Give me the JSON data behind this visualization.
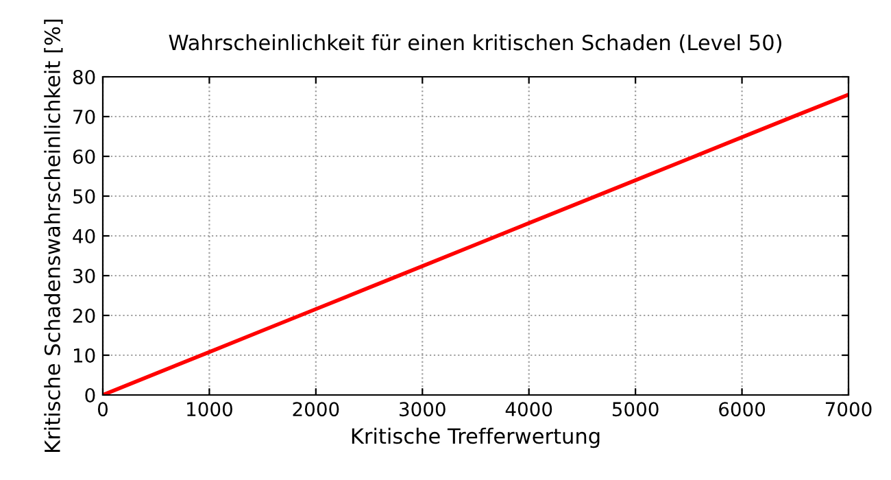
{
  "chart_data": {
    "type": "line",
    "title": "Wahrscheinlichkeit für einen kritischen Schaden (Level 50)",
    "xlabel": "Kritische Trefferwertung",
    "ylabel": "Kritische Schadenswahrscheinlichkeit [%]",
    "x": [
      0,
      500,
      1000,
      1500,
      2000,
      2500,
      3000,
      3500,
      4000,
      4500,
      5000,
      5500,
      6000,
      6500,
      7000
    ],
    "series": [
      {
        "color": "#ff0000",
        "values": [
          0,
          5.4,
          10.8,
          16.2,
          21.6,
          27,
          32.4,
          37.8,
          43.2,
          48.6,
          54,
          59.4,
          64.8,
          70.2,
          75.5
        ]
      }
    ],
    "xlim": [
      0,
      7000
    ],
    "xticks": [
      0,
      1000,
      2000,
      3000,
      4000,
      5000,
      6000,
      7000
    ],
    "ylim": [
      0,
      80
    ],
    "yticks": [
      0,
      10,
      20,
      30,
      40,
      50,
      60,
      70,
      80
    ],
    "grid": true,
    "marker": "none",
    "line_style": "solid"
  }
}
